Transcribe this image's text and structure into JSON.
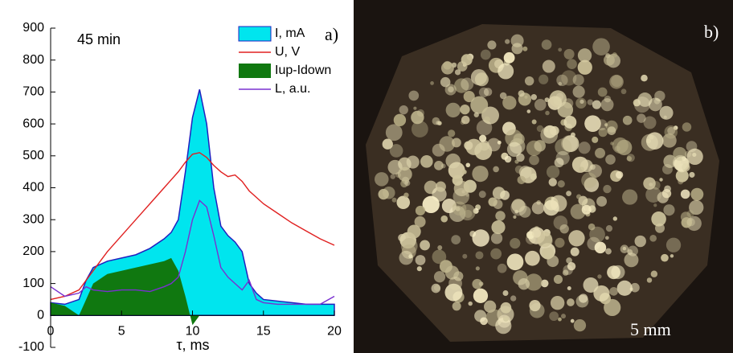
{
  "chart_data": {
    "type": "line",
    "annotation": "45 min",
    "panel_a_label": "a)",
    "panel_b_label": "b)",
    "scale_label": "5 mm",
    "xlabel": "τ, ms",
    "x": [
      0,
      1,
      2,
      2.5,
      3,
      4,
      5,
      6,
      7,
      8,
      8.5,
      9,
      9.5,
      10,
      10.5,
      11,
      11.5,
      12,
      12.5,
      13,
      13.5,
      14,
      14.5,
      15,
      16,
      17,
      18,
      19,
      20
    ],
    "series": [
      {
        "name": "I, mA",
        "color": "#00e5ee",
        "style": "area",
        "edge": "#2020c0",
        "values": [
          40,
          35,
          50,
          110,
          150,
          170,
          180,
          190,
          210,
          240,
          260,
          300,
          450,
          620,
          708,
          600,
          400,
          280,
          250,
          230,
          200,
          100,
          70,
          50,
          45,
          40,
          35,
          35,
          35
        ]
      },
      {
        "name": "U, V",
        "color": "#e02020",
        "style": "line",
        "values": [
          50,
          60,
          80,
          110,
          140,
          200,
          250,
          300,
          350,
          400,
          425,
          450,
          480,
          505,
          510,
          495,
          470,
          450,
          435,
          440,
          420,
          390,
          370,
          350,
          320,
          290,
          265,
          240,
          220
        ]
      },
      {
        "name": "Iup-Idown",
        "color": "#107810",
        "style": "area",
        "values": [
          40,
          30,
          0,
          50,
          100,
          130,
          140,
          150,
          160,
          170,
          180,
          140,
          60,
          -30,
          0,
          0,
          0,
          0,
          0,
          0,
          0,
          0,
          0,
          0,
          0,
          0,
          0,
          0,
          0
        ]
      },
      {
        "name": "L, a.u.",
        "color": "#7a30d0",
        "style": "line",
        "values": [
          90,
          60,
          70,
          90,
          80,
          75,
          80,
          80,
          75,
          90,
          100,
          120,
          200,
          300,
          360,
          340,
          250,
          150,
          120,
          100,
          80,
          110,
          50,
          40,
          35,
          35,
          35,
          35,
          60
        ]
      }
    ],
    "xlim": [
      0,
      20
    ],
    "xticks": [
      0,
      5,
      10,
      15,
      20
    ],
    "ylim": [
      -100,
      900
    ],
    "yticks": [
      -100,
      0,
      100,
      200,
      300,
      400,
      500,
      600,
      700,
      800,
      900
    ],
    "legend": "upper right"
  }
}
